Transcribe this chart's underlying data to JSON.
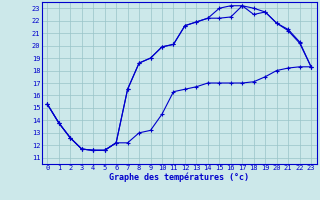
{
  "title": "Graphe des températures (°c)",
  "bg_color": "#cce8ea",
  "line_color": "#0000cc",
  "grid_color": "#99c4c8",
  "xlim": [
    -0.5,
    23.5
  ],
  "ylim": [
    10.5,
    23.5
  ],
  "xticks": [
    0,
    1,
    2,
    3,
    4,
    5,
    6,
    7,
    8,
    9,
    10,
    11,
    12,
    13,
    14,
    15,
    16,
    17,
    18,
    19,
    20,
    21,
    22,
    23
  ],
  "yticks": [
    11,
    12,
    13,
    14,
    15,
    16,
    17,
    18,
    19,
    20,
    21,
    22,
    23
  ],
  "curve1_x": [
    0,
    1,
    2,
    3,
    4,
    5,
    6,
    7,
    8,
    9,
    10,
    11,
    12,
    13,
    14,
    15,
    16,
    17,
    18,
    19,
    20,
    21,
    22,
    23
  ],
  "curve1_y": [
    15.3,
    13.8,
    12.6,
    11.7,
    11.6,
    11.6,
    12.2,
    12.2,
    13.0,
    13.2,
    14.5,
    16.3,
    16.5,
    16.7,
    17.0,
    17.0,
    17.0,
    17.0,
    17.1,
    17.5,
    18.0,
    18.2,
    18.3,
    18.3
  ],
  "curve2_x": [
    0,
    1,
    2,
    3,
    4,
    5,
    6,
    7,
    8,
    9,
    10,
    11,
    12,
    13,
    14,
    15,
    16,
    17,
    18,
    19,
    20,
    21,
    22,
    23
  ],
  "curve2_y": [
    15.3,
    13.8,
    12.6,
    11.7,
    11.6,
    11.6,
    12.2,
    16.5,
    18.6,
    19.0,
    19.9,
    20.1,
    21.6,
    21.9,
    22.2,
    23.0,
    23.2,
    23.2,
    23.0,
    22.7,
    21.8,
    21.3,
    20.3,
    18.3
  ],
  "curve3_x": [
    0,
    1,
    2,
    3,
    4,
    5,
    6,
    7,
    8,
    9,
    10,
    11,
    12,
    13,
    14,
    15,
    16,
    17,
    18,
    19,
    20,
    21,
    22,
    23
  ],
  "curve3_y": [
    15.3,
    13.8,
    12.6,
    11.7,
    11.6,
    11.6,
    12.2,
    16.5,
    18.6,
    19.0,
    19.9,
    20.1,
    21.6,
    21.9,
    22.2,
    22.2,
    22.3,
    23.2,
    22.5,
    22.7,
    21.8,
    21.2,
    20.2,
    18.3
  ]
}
